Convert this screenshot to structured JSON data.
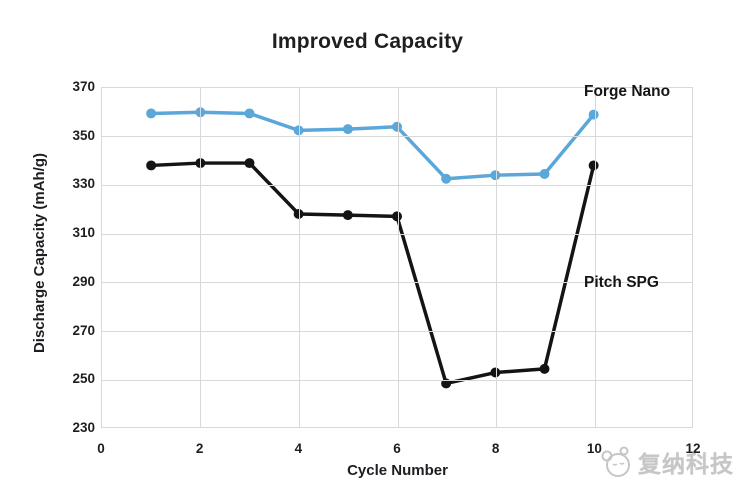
{
  "title": "Improved Capacity",
  "axes": {
    "x": {
      "label": "Cycle Number",
      "min": 0,
      "max": 12,
      "ticks": [
        0,
        2,
        4,
        6,
        8,
        10,
        12
      ]
    },
    "y": {
      "label": "Discharge Capacity (mAh/g)",
      "min": 230,
      "max": 370,
      "ticks": [
        370,
        350,
        330,
        310,
        290,
        270,
        250,
        230
      ]
    }
  },
  "chart_data": {
    "type": "line",
    "title": "Improved Capacity",
    "xlabel": "Cycle Number",
    "ylabel": "Discharge Capacity (mAh/g)",
    "xlim": [
      0,
      12
    ],
    "ylim": [
      230,
      370
    ],
    "grid": true,
    "legend_position": "inline-annotations",
    "x": [
      1,
      2,
      3,
      4,
      5,
      6,
      7,
      8,
      9,
      10
    ],
    "series": [
      {
        "name": "Forge Nano",
        "color": "#5ba7d9",
        "marker": "circle",
        "values": [
          359.5,
          360,
          359.5,
          352.5,
          353,
          354,
          332.5,
          334,
          334.5,
          359
        ]
      },
      {
        "name": "Pitch SPG",
        "color": "#141414",
        "marker": "circle",
        "values": [
          338,
          339,
          339,
          318,
          317.5,
          317,
          248,
          252.5,
          254,
          338
        ]
      }
    ]
  },
  "colors": {
    "gridline": "#d9d9d9",
    "label_text": "#1c1e21",
    "watermark_gray": "#b3b3b3"
  },
  "watermark": {
    "logo": "panda-logo",
    "text": "复纳科技"
  }
}
